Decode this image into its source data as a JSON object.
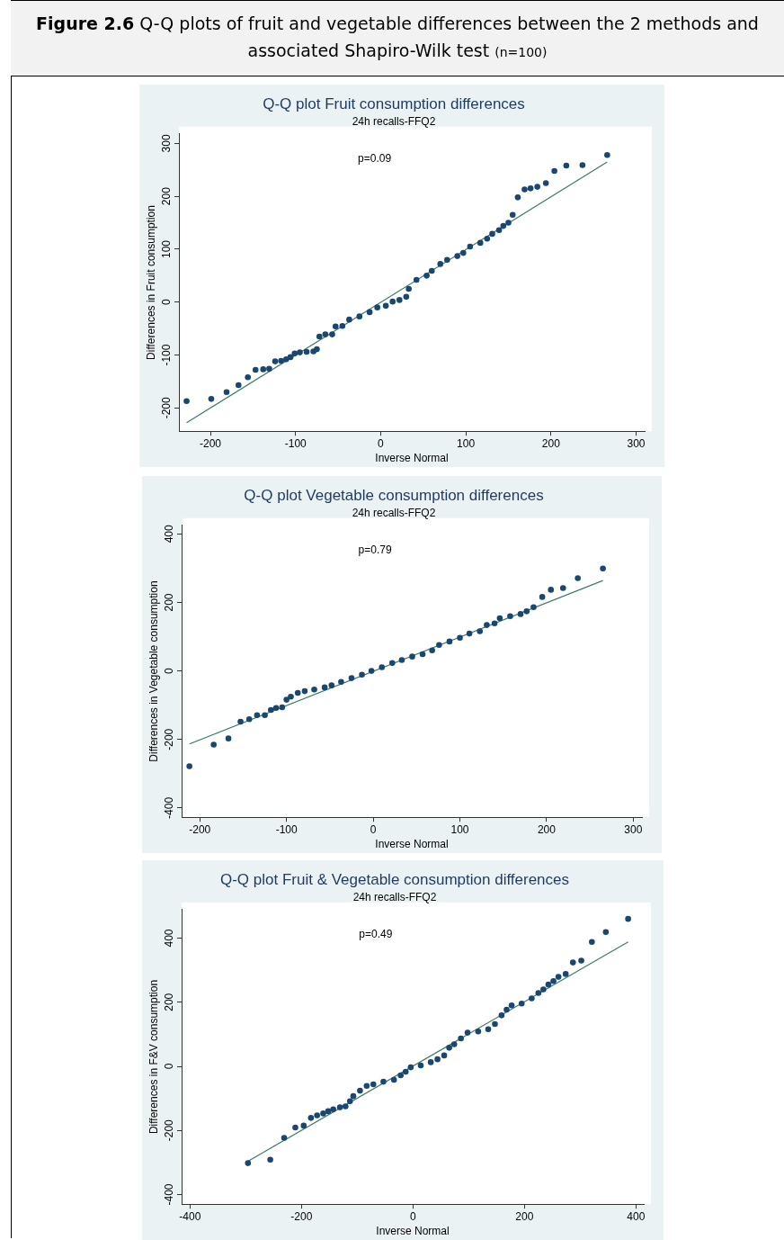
{
  "chart_data": [
    {
      "type": "other",
      "title": "Figure 2.6",
      "subtitle": "Q-Q plots of fruit and vegetable differences between the 2 methods and associated Shapiro-Wilk test",
      "annotations": [
        "(n=100)"
      ]
    },
    {
      "type": "scatter",
      "title": "Q-Q plot Fruit consumption differences",
      "subtitle": "24h recalls-FFQ2",
      "xlabel": "Inverse Normal",
      "ylabel": "Differences in Fruit consumption",
      "annotations": [
        "p=0.09"
      ],
      "xlim": [
        -237,
        310
      ],
      "ylim": [
        -244,
        318
      ],
      "xticks": [
        -200,
        -100,
        0,
        100,
        200,
        300
      ],
      "yticks": [
        -200,
        -100,
        0,
        100,
        200,
        300
      ],
      "series": [
        {
          "type": "scatter",
          "marker": "circle",
          "color": "#1a476f",
          "x": [
            -228,
            -199,
            -181,
            -167,
            -156,
            -147,
            -138,
            -131,
            -124,
            -117,
            -111,
            -106,
            -101,
            -95,
            -87,
            -79,
            -75,
            -72,
            -65,
            -57,
            -53,
            -45,
            -37,
            -25,
            -13,
            -4,
            6,
            14,
            22,
            30,
            33,
            42,
            54,
            60,
            70,
            78,
            90,
            97,
            105,
            117,
            125,
            131,
            139,
            144,
            150,
            155,
            161,
            169,
            176,
            184,
            194,
            204,
            218,
            237,
            266
          ],
          "values": [
            -187,
            -183,
            -170,
            -157,
            -142,
            -128,
            -127,
            -126,
            -112,
            -111,
            -108,
            -104,
            -97,
            -95,
            -94,
            -93,
            -89,
            -65,
            -61,
            -61,
            -46,
            -45,
            -33,
            -27,
            -19,
            -10,
            -7,
            1,
            4,
            10,
            25,
            42,
            50,
            59,
            72,
            80,
            87,
            93,
            105,
            112,
            120,
            129,
            136,
            144,
            150,
            165,
            198,
            213,
            215,
            218,
            225,
            248,
            258,
            259,
            278
          ]
        },
        {
          "type": "line",
          "marker": "none",
          "color": "#3b7a68",
          "x": [
            -228,
            266
          ],
          "values": [
            -228,
            265
          ]
        }
      ]
    },
    {
      "type": "scatter",
      "title": "Q-Q plot Vegetable consumption differences",
      "subtitle": "24h recalls-FFQ2",
      "xlabel": "Inverse Normal",
      "ylabel": "Differences in Vegetable consumption",
      "annotations": [
        "p=0.79"
      ],
      "xlim": [
        -221,
        310
      ],
      "ylim": [
        -427,
        425
      ],
      "xticks": [
        -200,
        -100,
        0,
        100,
        200,
        300
      ],
      "yticks": [
        -400,
        -200,
        0,
        200,
        400
      ],
      "series": [
        {
          "type": "scatter",
          "marker": "circle",
          "color": "#1a476f",
          "x": [
            -212,
            -184,
            -167,
            -153,
            -143,
            -134,
            -125,
            -118,
            -112,
            -105,
            -100,
            -95,
            -87,
            -79,
            -68,
            -56,
            -48,
            -37,
            -25,
            -13,
            -2,
            10,
            22,
            33,
            45,
            57,
            68,
            76,
            88,
            100,
            111,
            123,
            131,
            140,
            146,
            158,
            170,
            177,
            185,
            195,
            205,
            219,
            236,
            265
          ],
          "values": [
            -278,
            -215,
            -197,
            -148,
            -141,
            -129,
            -129,
            -114,
            -108,
            -106,
            -84,
            -75,
            -64,
            -59,
            -54,
            -48,
            -42,
            -32,
            -21,
            -11,
            0,
            11,
            23,
            32,
            42,
            49,
            60,
            76,
            86,
            97,
            109,
            116,
            134,
            139,
            154,
            160,
            166,
            174,
            186,
            216,
            237,
            242,
            271,
            299
          ]
        },
        {
          "type": "line",
          "marker": "none",
          "color": "#3b7a68",
          "x": [
            -212,
            265
          ],
          "values": [
            -213,
            264
          ]
        }
      ]
    },
    {
      "type": "scatter",
      "title": "Q-Q plot Fruit & Vegetable consumption differences",
      "subtitle": "24h recalls-FFQ2",
      "xlabel": "Inverse Normal",
      "ylabel": "Differences in F&V consumption",
      "annotations": [
        "p=0.49"
      ],
      "xlim": [
        -415,
        414
      ],
      "ylim": [
        -430,
        489
      ],
      "xticks": [
        -400,
        -200,
        0,
        200,
        400
      ],
      "yticks": [
        -400,
        -200,
        0,
        200,
        400
      ],
      "series": [
        {
          "type": "scatter",
          "marker": "circle",
          "color": "#1a476f",
          "x": [
            -296,
            -256,
            -231,
            -211,
            -196,
            -183,
            -172,
            -161,
            -152,
            -143,
            -131,
            -121,
            -113,
            -107,
            -95,
            -83,
            -71,
            -53,
            -34,
            -22,
            -13,
            -4,
            14,
            32,
            44,
            56,
            65,
            74,
            86,
            98,
            117,
            135,
            147,
            159,
            168,
            177,
            195,
            213,
            225,
            234,
            243,
            252,
            261,
            274,
            287,
            302,
            321,
            346,
            386
          ],
          "values": [
            -302,
            -291,
            -223,
            -191,
            -185,
            -161,
            -153,
            -147,
            -140,
            -134,
            -128,
            -125,
            -109,
            -93,
            -76,
            -61,
            -56,
            -48,
            -42,
            -28,
            -17,
            -3,
            3,
            13,
            22,
            34,
            58,
            69,
            87,
            105,
            109,
            116,
            132,
            159,
            177,
            190,
            196,
            212,
            229,
            240,
            255,
            266,
            279,
            288,
            324,
            330,
            388,
            419,
            460
          ]
        },
        {
          "type": "line",
          "marker": "none",
          "color": "#3b7a68",
          "x": [
            -296,
            386
          ],
          "values": [
            -296,
            388
          ]
        }
      ]
    }
  ]
}
